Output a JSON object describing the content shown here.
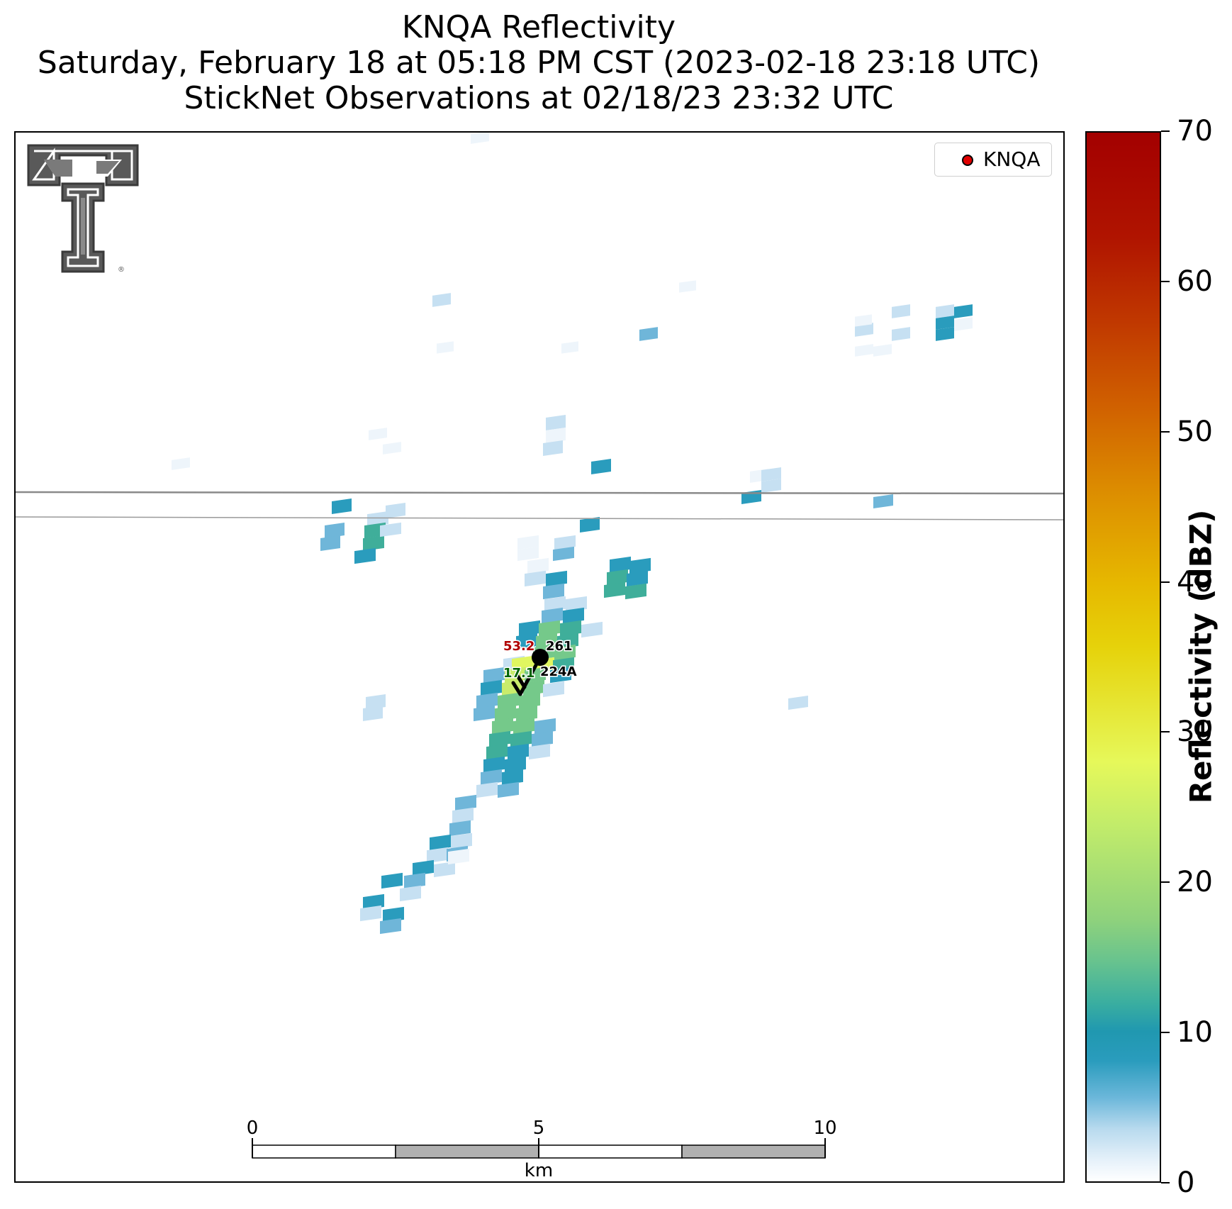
{
  "title": {
    "line1": "KNQA Reflectivity",
    "line2": "Saturday, February 18 at 05:18 PM CST (2023-02-18 23:18 UTC)",
    "line3": "StickNet Observations at 02/18/23 23:32 UTC"
  },
  "legend": {
    "label": "KNQA",
    "marker_color": "#e00000"
  },
  "logo": {
    "name": "Texas Tech double-T logo",
    "mark": "®"
  },
  "station": {
    "temperature": "53.2",
    "temperature_color": "#b00000",
    "dewpoint": "17.1",
    "dewpoint_color": "#006400",
    "pressure_code": "261",
    "station_id": "224A",
    "wind_from": "southwest"
  },
  "scale_bar": {
    "ticks": [
      "0",
      "5",
      "10"
    ],
    "unit": "km",
    "segments_km": [
      0,
      2.5,
      5,
      7.5,
      10
    ]
  },
  "colorbar": {
    "title": "Reflectivity (dBZ)",
    "ticks": [
      "0",
      "10",
      "20",
      "30",
      "40",
      "50",
      "60",
      "70"
    ],
    "min": 0,
    "max": 70
  }
}
